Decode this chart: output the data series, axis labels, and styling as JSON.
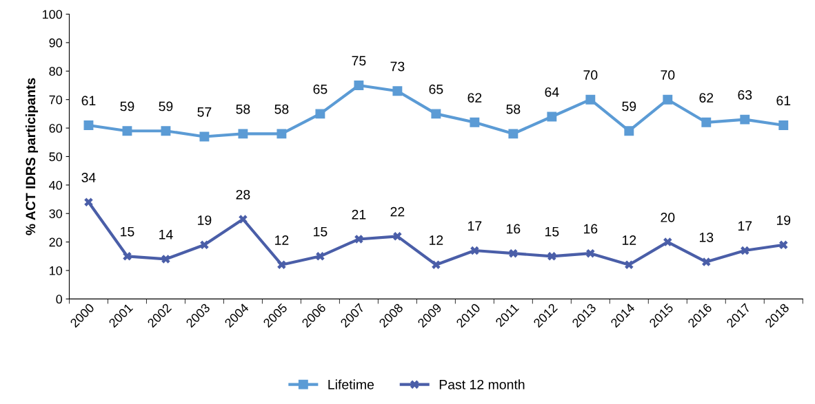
{
  "chart_data": {
    "type": "line",
    "ylabel": "% ACT IDRS participants",
    "categories": [
      "2000",
      "2001",
      "2002",
      "2003",
      "2004",
      "2005",
      "2006",
      "2007",
      "2008",
      "2009",
      "2010",
      "2011",
      "2012",
      "2013",
      "2014",
      "2015",
      "2016",
      "2017",
      "2018"
    ],
    "series": [
      {
        "name": "Lifetime",
        "color": "#5b9bd5",
        "marker": "square",
        "values": [
          61,
          59,
          59,
          57,
          58,
          58,
          65,
          75,
          73,
          65,
          62,
          58,
          64,
          70,
          59,
          70,
          62,
          63,
          61
        ]
      },
      {
        "name": "Past 12 month",
        "color": "#4a5ea8",
        "marker": "cross",
        "values": [
          34,
          15,
          14,
          19,
          28,
          12,
          15,
          21,
          22,
          12,
          17,
          16,
          15,
          16,
          12,
          20,
          13,
          17,
          19
        ]
      }
    ],
    "ylim": [
      0,
      100
    ],
    "yticks": [
      0,
      10,
      20,
      30,
      40,
      50,
      60,
      70,
      80,
      90,
      100
    ],
    "data_labels": true,
    "grid": false,
    "legend": "bottom",
    "line_style": "solid"
  }
}
